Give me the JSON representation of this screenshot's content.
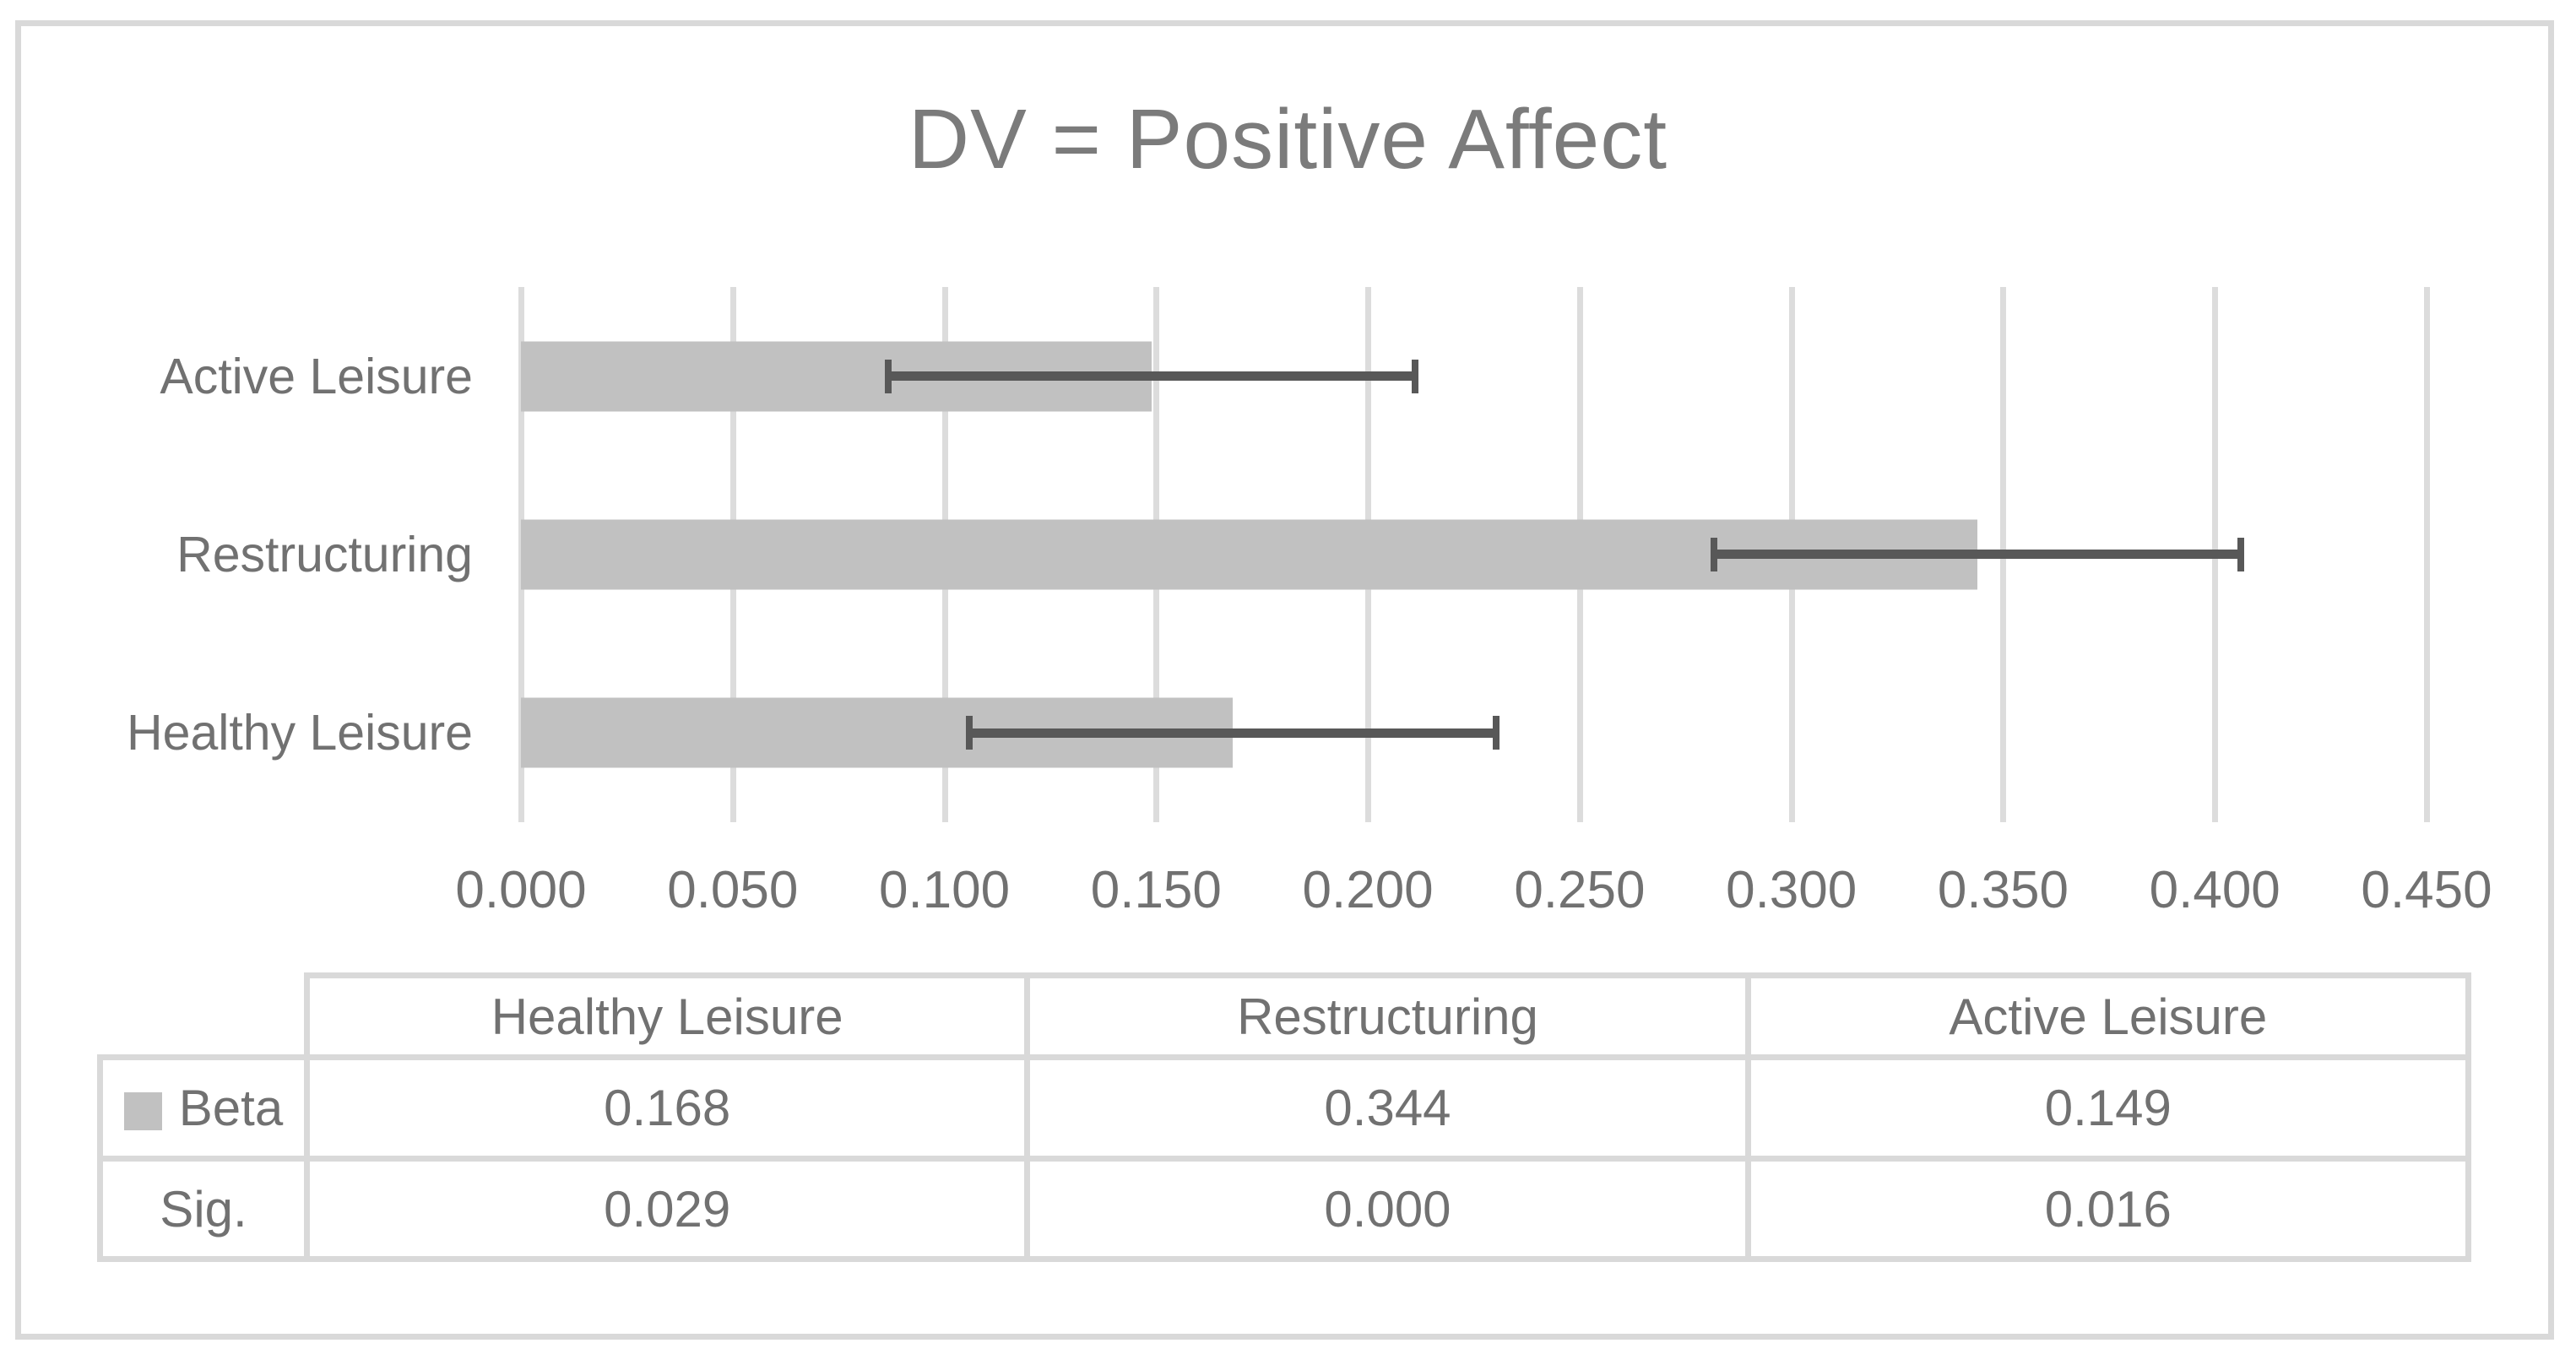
{
  "chart_data": {
    "type": "bar",
    "orientation": "horizontal",
    "title": "DV = Positive Affect",
    "categories": [
      "Active Leisure",
      "Restructuring",
      "Healthy Leisure"
    ],
    "values": [
      0.149,
      0.344,
      0.168
    ],
    "error_bars": {
      "low": [
        0.086,
        0.281,
        0.105
      ],
      "high": [
        0.212,
        0.407,
        0.231
      ]
    },
    "xlim": [
      0,
      0.45
    ],
    "x_ticks": [
      0.0,
      0.05,
      0.1,
      0.15,
      0.2,
      0.25,
      0.3,
      0.35,
      0.4,
      0.45
    ],
    "x_tick_labels": [
      "0.000",
      "0.050",
      "0.100",
      "0.150",
      "0.200",
      "0.250",
      "0.300",
      "0.350",
      "0.400",
      "0.450"
    ],
    "grid": true,
    "legend_position": "in-data-table",
    "data_table": {
      "columns": [
        "Healthy Leisure",
        "Restructuring",
        "Active Leisure"
      ],
      "rows": [
        {
          "label": "Beta",
          "has_legend_key": true,
          "values": [
            "0.168",
            "0.344",
            "0.149"
          ]
        },
        {
          "label": "Sig.",
          "has_legend_key": false,
          "values": [
            "0.029",
            "0.000",
            "0.016"
          ]
        }
      ]
    },
    "colors": {
      "bar": "#c1c1c1",
      "error_bar": "#585858",
      "gridline": "#dcdcdc",
      "table_border": "#d9d9d9",
      "title_text": "#7b7b7b",
      "axis_text": "#717171",
      "background": "#ffffff"
    }
  }
}
